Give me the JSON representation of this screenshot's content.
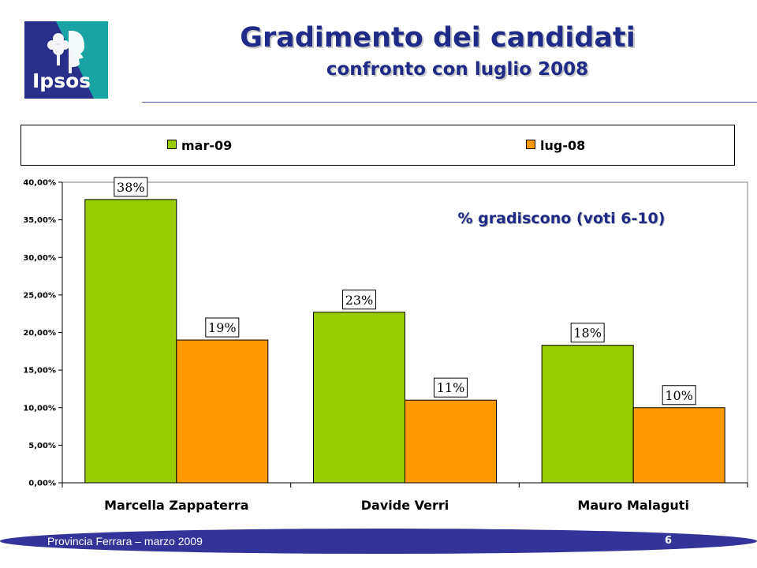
{
  "header": {
    "logo_text": "Ipsos",
    "title": "Gradimento dei candidati",
    "subtitle": "confronto con luglio 2008"
  },
  "colors": {
    "mar09": "#99cc00",
    "lug08": "#ff9900",
    "title": "#1f2b87",
    "footer": "#333399"
  },
  "chart_data": {
    "type": "bar",
    "categories": [
      "Marcella Zappaterra",
      "Davide Verri",
      "Mauro Malaguti"
    ],
    "series": [
      {
        "name": "mar-09",
        "values": [
          37.7,
          22.7,
          18.3
        ],
        "labels": [
          "38%",
          "23%",
          "18%"
        ]
      },
      {
        "name": "lug-08",
        "values": [
          19.0,
          11.0,
          10.0
        ],
        "labels": [
          "19%",
          "11%",
          "10%"
        ]
      }
    ],
    "annotation": "% gradiscono (voti 6-10)",
    "ylim": [
      0,
      40
    ],
    "yticks": [
      0,
      5,
      10,
      15,
      20,
      25,
      30,
      35,
      40
    ],
    "ytick_labels": [
      "0,00%",
      "5,00%",
      "10,00%",
      "15,00%",
      "20,00%",
      "25,00%",
      "30,00%",
      "35,00%",
      "40,00%"
    ],
    "grid": false,
    "legend": "top"
  },
  "footer": {
    "text": "Provincia Ferrara – marzo 2009",
    "page": "6"
  }
}
